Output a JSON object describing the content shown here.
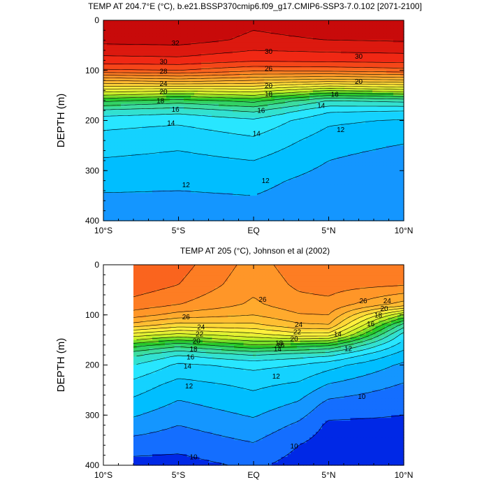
{
  "chart_data": [
    {
      "type": "heatmap",
      "title": "TEMP AT 204.7°E (°C), b.e21.BSSP370cmip6.f09_g17.CMIP6-SSP3-7.0.102 [2071-2100]",
      "ylabel": "DEPTH (m)",
      "xlabel": "",
      "xlim": [
        -10,
        10
      ],
      "ylim": [
        400,
        0
      ],
      "x_ticks": [
        -10,
        -5,
        0,
        5,
        10
      ],
      "x_tick_labels": [
        "10°S",
        "5°S",
        "EQ",
        "5°N",
        "10°N"
      ],
      "y_ticks": [
        0,
        100,
        200,
        300,
        400
      ],
      "y_tick_labels": [
        "0",
        "100",
        "200",
        "300",
        "400"
      ],
      "data_xmin": -10,
      "depth": [
        0,
        40,
        80,
        100,
        120,
        140,
        160,
        180,
        200,
        240,
        280,
        320,
        360,
        400
      ],
      "profiles": [
        {
          "lat": -10,
          "temp": [
            32.6,
            32.3,
            30.6,
            28.8,
            25.0,
            21.5,
            18.3,
            15.8,
            14.4,
            13.6,
            12.9,
            12.3,
            11.8,
            11.4
          ]
        },
        {
          "lat": -5,
          "temp": [
            32.8,
            32.4,
            30.7,
            29.0,
            25.5,
            21.2,
            17.6,
            15.4,
            14.2,
            13.3,
            12.7,
            12.2,
            11.8,
            11.4
          ]
        },
        {
          "lat": 0,
          "temp": [
            32.2,
            31.8,
            30.2,
            28.2,
            25.0,
            21.5,
            18.4,
            16.2,
            14.8,
            13.8,
            13.0,
            12.3,
            11.9,
            11.6
          ]
        },
        {
          "lat": 5,
          "temp": [
            32.5,
            32.0,
            30.3,
            28.3,
            24.5,
            20.0,
            16.0,
            14.2,
            13.2,
            12.5,
            12.0,
            11.6,
            11.4,
            11.2
          ]
        },
        {
          "lat": 10,
          "temp": [
            32.6,
            32.1,
            30.4,
            28.6,
            24.8,
            20.6,
            16.4,
            14.0,
            12.9,
            12.1,
            11.5,
            11.2,
            11.1,
            11.1
          ]
        }
      ],
      "contour_labels": [
        {
          "lat": -5.2,
          "depth": 45,
          "text": "32"
        },
        {
          "lat": -6.0,
          "depth": 82,
          "text": "30"
        },
        {
          "lat": -6.0,
          "depth": 102,
          "text": "28"
        },
        {
          "lat": -6.0,
          "depth": 126,
          "text": "24"
        },
        {
          "lat": -6.0,
          "depth": 142,
          "text": "20"
        },
        {
          "lat": -6.2,
          "depth": 160,
          "text": "18"
        },
        {
          "lat": -5.2,
          "depth": 178,
          "text": "16"
        },
        {
          "lat": -5.5,
          "depth": 205,
          "text": "14"
        },
        {
          "lat": 1.0,
          "depth": 62,
          "text": "30"
        },
        {
          "lat": 1.0,
          "depth": 96,
          "text": "26"
        },
        {
          "lat": 1.0,
          "depth": 130,
          "text": "20"
        },
        {
          "lat": 1.0,
          "depth": 147,
          "text": "18"
        },
        {
          "lat": 0.5,
          "depth": 180,
          "text": "16"
        },
        {
          "lat": 0.2,
          "depth": 226,
          "text": "14"
        },
        {
          "lat": 4.5,
          "depth": 170,
          "text": "14"
        },
        {
          "lat": 7.0,
          "depth": 72,
          "text": "30"
        },
        {
          "lat": 7.0,
          "depth": 122,
          "text": "20"
        },
        {
          "lat": 5.4,
          "depth": 148,
          "text": "16"
        },
        {
          "lat": 5.8,
          "depth": 218,
          "text": "12"
        },
        {
          "lat": 0.8,
          "depth": 320,
          "text": "12"
        },
        {
          "lat": -4.5,
          "depth": 328,
          "text": "12"
        }
      ]
    },
    {
      "type": "heatmap",
      "title": "TEMP AT 205 (°C), Johnson et al (2002)",
      "ylabel": "DEPTH (m)",
      "xlabel": "",
      "xlim": [
        -10,
        10
      ],
      "ylim": [
        400,
        0
      ],
      "x_ticks": [
        -10,
        -5,
        0,
        5,
        10
      ],
      "x_tick_labels": [
        "10°S",
        "5°S",
        "EQ",
        "5°N",
        "10°N"
      ],
      "y_ticks": [
        0,
        100,
        200,
        300,
        400
      ],
      "y_tick_labels": [
        "0",
        "100",
        "200",
        "300",
        "400"
      ],
      "data_xmin": -8,
      "depth": [
        0,
        40,
        80,
        100,
        120,
        140,
        160,
        180,
        200,
        240,
        280,
        320,
        360,
        400
      ],
      "profiles": [
        {
          "lat": -8,
          "temp": [
            29.0,
            28.6,
            27.6,
            26.5,
            24.6,
            21.5,
            18.5,
            16.2,
            15.0,
            13.6,
            12.6,
            11.6,
            10.5,
            9.6
          ]
        },
        {
          "lat": -5,
          "temp": [
            28.4,
            28.0,
            27.0,
            25.6,
            23.6,
            20.6,
            17.4,
            15.0,
            13.8,
            12.6,
            11.8,
            11.0,
            10.3,
            9.6
          ]
        },
        {
          "lat": 0,
          "temp": [
            26.6,
            26.3,
            25.8,
            25.0,
            23.8,
            21.6,
            19.0,
            16.0,
            14.3,
            13.2,
            12.5,
            11.7,
            10.9,
            10.2
          ]
        },
        {
          "lat": 3,
          "temp": [
            27.5,
            27.2,
            26.6,
            25.9,
            24.8,
            22.5,
            18.6,
            15.5,
            14.0,
            12.8,
            11.8,
            10.8,
            10.0,
            9.6
          ]
        },
        {
          "lat": 5,
          "temp": [
            27.8,
            27.4,
            26.7,
            26.0,
            25.0,
            22.5,
            18.2,
            15.2,
            13.4,
            11.9,
            10.6,
            9.8,
            9.5,
            9.3
          ]
        },
        {
          "lat": 10,
          "temp": [
            27.9,
            27.1,
            24.5,
            20.0,
            16.5,
            14.5,
            13.5,
            12.5,
            11.8,
            10.9,
            10.2,
            9.8,
            9.5,
            9.3
          ]
        }
      ],
      "contour_labels": [
        {
          "lat": -4.5,
          "depth": 104,
          "text": "26"
        },
        {
          "lat": -3.5,
          "depth": 124,
          "text": "24"
        },
        {
          "lat": -3.6,
          "depth": 138,
          "text": "22"
        },
        {
          "lat": -3.8,
          "depth": 152,
          "text": "20"
        },
        {
          "lat": -4.0,
          "depth": 168,
          "text": "18"
        },
        {
          "lat": -4.2,
          "depth": 184,
          "text": "16"
        },
        {
          "lat": -4.4,
          "depth": 202,
          "text": "14"
        },
        {
          "lat": 0.6,
          "depth": 69,
          "text": "26"
        },
        {
          "lat": 3.0,
          "depth": 119,
          "text": "24"
        },
        {
          "lat": 2.9,
          "depth": 134,
          "text": "22"
        },
        {
          "lat": 2.7,
          "depth": 148,
          "text": "20"
        },
        {
          "lat": 1.8,
          "depth": 160,
          "text": "16"
        },
        {
          "lat": 1.7,
          "depth": 156,
          "text": "18"
        },
        {
          "lat": 7.3,
          "depth": 72,
          "text": "26"
        },
        {
          "lat": 8.9,
          "depth": 72,
          "text": "24"
        },
        {
          "lat": 8.7,
          "depth": 87,
          "text": "20"
        },
        {
          "lat": 8.3,
          "depth": 100,
          "text": "18"
        },
        {
          "lat": 7.8,
          "depth": 118,
          "text": "16"
        },
        {
          "lat": 1.6,
          "depth": 168,
          "text": "14"
        },
        {
          "lat": 5.6,
          "depth": 138,
          "text": "14"
        },
        {
          "lat": 6.3,
          "depth": 167,
          "text": "12"
        },
        {
          "lat": 1.5,
          "depth": 222,
          "text": "12"
        },
        {
          "lat": -4.3,
          "depth": 242,
          "text": "12"
        },
        {
          "lat": 7.2,
          "depth": 263,
          "text": "10"
        },
        {
          "lat": 2.7,
          "depth": 362,
          "text": "10"
        },
        {
          "lat": -4.0,
          "depth": 383,
          "text": "10"
        }
      ]
    }
  ]
}
